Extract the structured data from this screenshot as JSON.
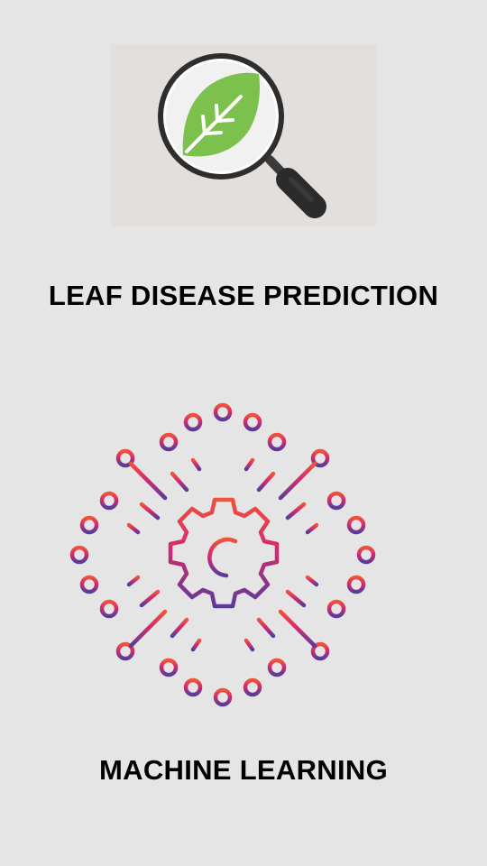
{
  "screen": {
    "background_color": "#e5e5e5"
  },
  "leaf_card": {
    "icon": "leaf-magnifier-icon",
    "leaf_color": "#7cc04e",
    "handle_color": "#2b2b2b",
    "title": "LEAF DISEASE PREDICTION"
  },
  "ml_card": {
    "icon": "gear-circuit-icon",
    "gradient_start": "#f0523a",
    "gradient_end": "#5a3b9a",
    "title": "MACHINE LEARNING"
  }
}
